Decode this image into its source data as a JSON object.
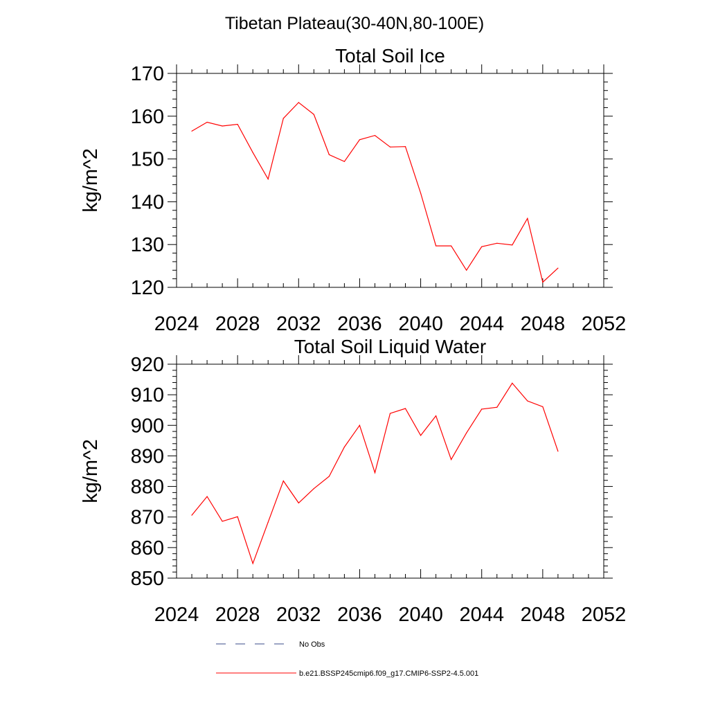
{
  "figure_title": "Tibetan Plateau(30-40N,80-100E)",
  "legend": [
    {
      "label": "No Obs",
      "color": "#3a4a8a",
      "dash": true
    },
    {
      "label": "b.e21.BSSP245cmip6.f09_g17.CMIP6-SSP2-4.5.001",
      "color": "#ff0000",
      "dash": false
    }
  ],
  "chart_data": [
    {
      "type": "line",
      "title": "Total Soil Ice",
      "xlabel": "",
      "ylabel": "kg/m^2",
      "xlim": [
        2024,
        2052
      ],
      "ylim": [
        120,
        170
      ],
      "xticks": [
        "2024",
        "2028",
        "2032",
        "2036",
        "2040",
        "2044",
        "2048",
        "2052"
      ],
      "yticks": [
        "120",
        "130",
        "140",
        "150",
        "160",
        "170"
      ],
      "grid": false,
      "series": [
        {
          "name": "b.e21.BSSP245cmip6.f09_g17.CMIP6-SSP2-4.5.001",
          "color": "#ff0000",
          "x": [
            2025,
            2026,
            2027,
            2028,
            2029,
            2030,
            2031,
            2032,
            2033,
            2034,
            2035,
            2036,
            2037,
            2038,
            2039,
            2040,
            2041,
            2042,
            2043,
            2044,
            2045,
            2046,
            2047,
            2048,
            2049
          ],
          "y": [
            156.5,
            158.6,
            157.7,
            158.1,
            151.5,
            145.3,
            159.5,
            163.2,
            160.4,
            151.0,
            149.4,
            154.5,
            155.5,
            152.8,
            152.9,
            142.0,
            129.7,
            129.7,
            124.0,
            129.5,
            130.3,
            129.9,
            136.1,
            121.2,
            124.5
          ]
        }
      ]
    },
    {
      "type": "line",
      "title": "Total Soil Liquid Water",
      "xlabel": "",
      "ylabel": "kg/m^2",
      "xlim": [
        2024,
        2052
      ],
      "ylim": [
        850,
        920
      ],
      "xticks": [
        "2024",
        "2028",
        "2032",
        "2036",
        "2040",
        "2044",
        "2048",
        "2052"
      ],
      "yticks": [
        "850",
        "860",
        "870",
        "880",
        "890",
        "900",
        "910",
        "920"
      ],
      "grid": false,
      "series": [
        {
          "name": "b.e21.BSSP245cmip6.f09_g17.CMIP6-SSP2-4.5.001",
          "color": "#ff0000",
          "x": [
            2025,
            2026,
            2027,
            2028,
            2029,
            2030,
            2031,
            2032,
            2033,
            2034,
            2035,
            2036,
            2037,
            2038,
            2039,
            2040,
            2041,
            2042,
            2043,
            2044,
            2045,
            2046,
            2047,
            2048,
            2049
          ],
          "y": [
            870.6,
            876.7,
            868.6,
            870.1,
            854.8,
            868.3,
            881.8,
            874.6,
            879.3,
            883.3,
            892.9,
            900.0,
            884.5,
            903.9,
            905.5,
            896.7,
            903.1,
            888.8,
            897.5,
            905.3,
            905.9,
            913.8,
            908.0,
            906.1,
            891.5
          ]
        }
      ]
    }
  ]
}
